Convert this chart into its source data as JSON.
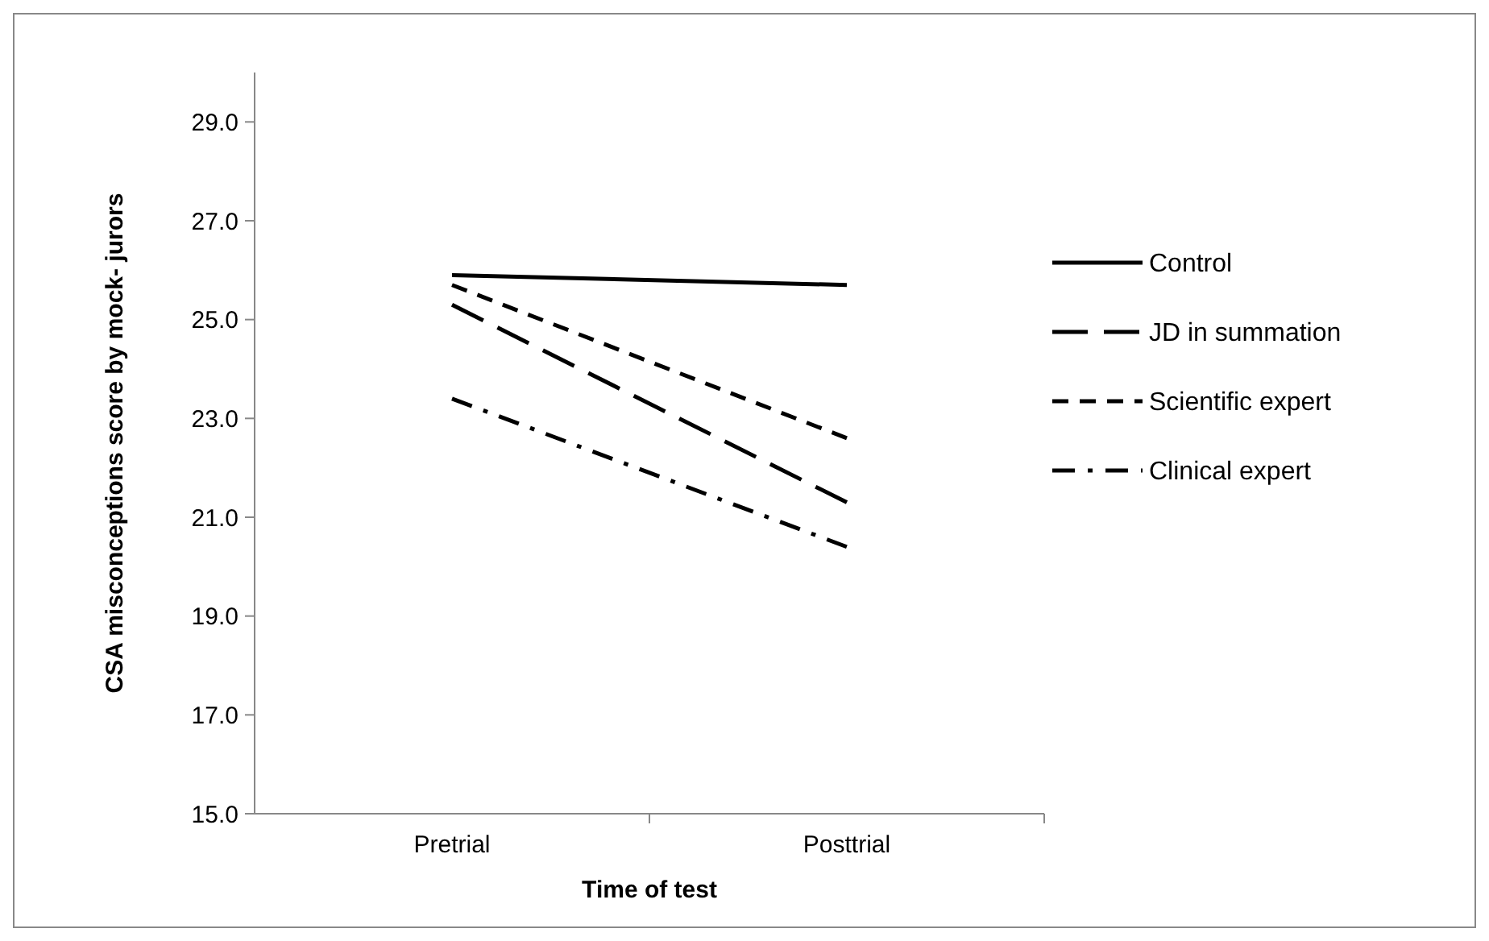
{
  "chart_data": {
    "type": "line",
    "xlabel": "Time of test",
    "ylabel": "CSA misconceptions score by mock- jurors",
    "categories": [
      "Pretrial",
      "Posttrial"
    ],
    "series": [
      {
        "name": "Control",
        "color": "#000000",
        "line_style": "solid",
        "values": [
          25.9,
          25.7
        ]
      },
      {
        "name": "JD in summation",
        "color": "#000000",
        "line_style": "longdash",
        "values": [
          25.3,
          21.3
        ]
      },
      {
        "name": "Scientific expert",
        "color": "#000000",
        "line_style": "dashed",
        "values": [
          25.7,
          22.6
        ]
      },
      {
        "name": "Clinical expert",
        "color": "#000000",
        "line_style": "dashdot",
        "values": [
          23.4,
          20.4
        ]
      }
    ],
    "ylim": [
      15,
      30
    ],
    "yticks": [
      {
        "value": 15,
        "label": "15.0"
      },
      {
        "value": 17,
        "label": "17.0"
      },
      {
        "value": 19,
        "label": "19.0"
      },
      {
        "value": 21,
        "label": "21.0"
      },
      {
        "value": 23,
        "label": "23.0"
      },
      {
        "value": 25,
        "label": "25.0"
      },
      {
        "value": 27,
        "label": "27.0"
      },
      {
        "value": 29,
        "label": "29.0"
      }
    ],
    "grid": false,
    "legend": "right",
    "marker": "none"
  }
}
